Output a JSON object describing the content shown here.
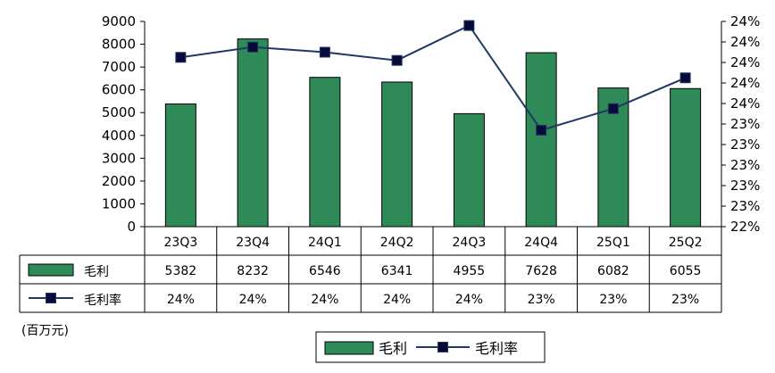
{
  "unit_label": "(百万元)",
  "colors": {
    "bar": "#2e8b57",
    "line": "#1f3864",
    "marker": "#0a0a3a"
  },
  "chart_data": {
    "type": "bar",
    "categories": [
      "23Q3",
      "23Q4",
      "24Q1",
      "24Q2",
      "24Q3",
      "24Q4",
      "25Q1",
      "25Q2"
    ],
    "series": [
      {
        "name": "毛利",
        "type": "bar",
        "axis": "left",
        "values": [
          5382,
          8232,
          6546,
          6341,
          4955,
          7628,
          6082,
          6055
        ],
        "table_labels": [
          "5382",
          "8232",
          "6546",
          "6341",
          "4955",
          "7628",
          "6082",
          "6055"
        ]
      },
      {
        "name": "毛利率",
        "type": "line",
        "axis": "right",
        "values": [
          0.2365,
          0.2375,
          0.237,
          0.2362,
          0.2396,
          0.2294,
          0.2315,
          0.2345
        ],
        "table_labels": [
          "24%",
          "24%",
          "24%",
          "24%",
          "24%",
          "23%",
          "23%",
          "23%"
        ]
      }
    ],
    "y_left": {
      "min": 0,
      "max": 9000,
      "ticks": [
        "0",
        "1000",
        "2000",
        "3000",
        "4000",
        "5000",
        "6000",
        "7000",
        "8000",
        "9000"
      ]
    },
    "y_right": {
      "min": 0.22,
      "max": 0.24,
      "ticks": [
        "22%",
        "23%",
        "23%",
        "23%",
        "23%",
        "23%",
        "24%",
        "24%",
        "24%",
        "24%",
        "24%"
      ]
    },
    "legend": {
      "position": "bottom",
      "items": [
        "毛利",
        "毛利率"
      ]
    },
    "grid": false
  }
}
